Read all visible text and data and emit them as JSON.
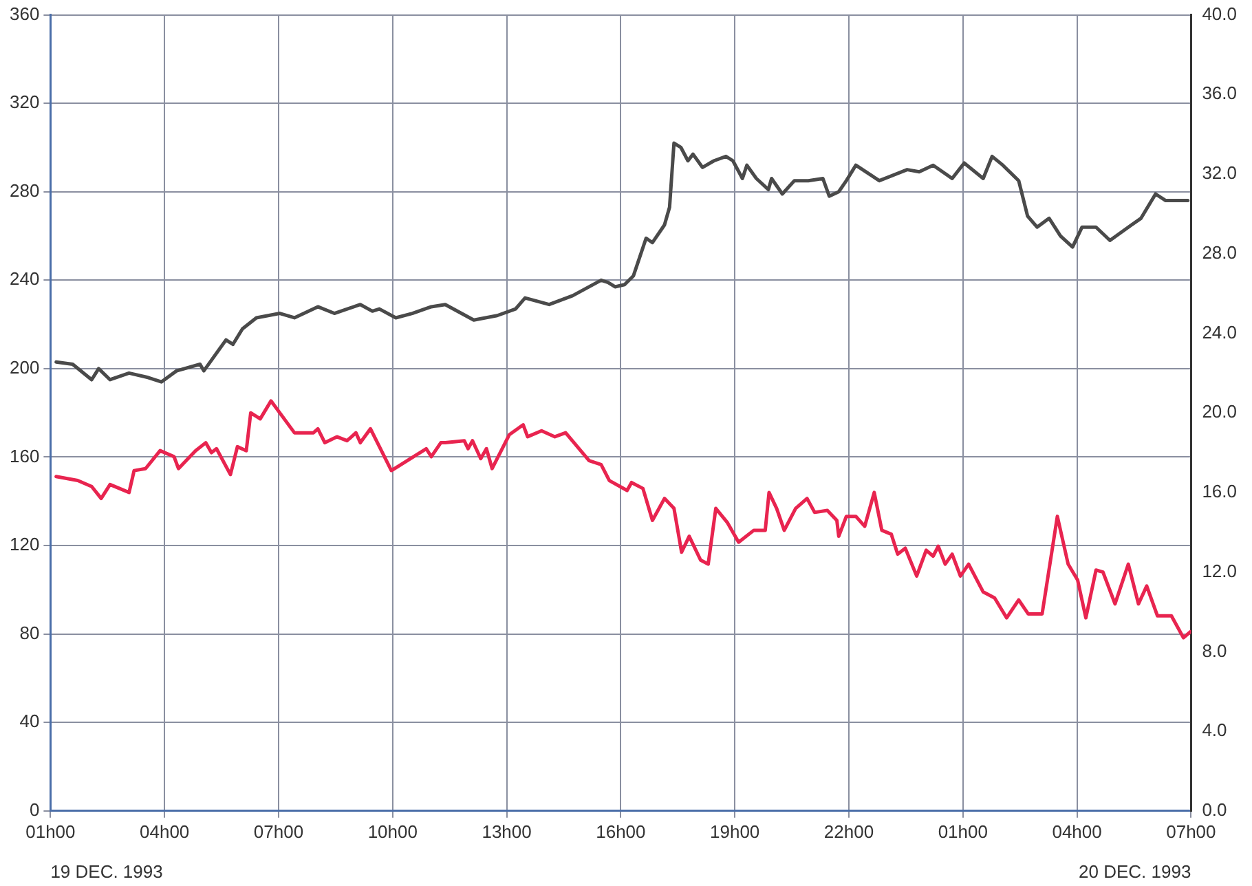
{
  "chart_data": {
    "type": "line",
    "x": [
      "1993-12-19T01:09",
      "1993-12-19T01:35",
      "1993-12-19T02:05",
      "1993-12-19T02:16",
      "1993-12-19T02:34",
      "1993-12-19T03:04",
      "1993-12-19T03:34",
      "1993-12-19T03:55",
      "1993-12-19T04:19",
      "1993-12-19T04:56",
      "1993-12-19T05:02",
      "1993-12-19T05:37",
      "1993-12-19T05:48",
      "1993-12-19T06:03",
      "1993-12-19T06:25",
      "1993-12-19T07:02",
      "1993-12-19T07:25",
      "1993-12-19T08:02",
      "1993-12-19T08:28",
      "1993-12-19T09:09",
      "1993-12-19T09:28",
      "1993-12-19T09:39",
      "1993-12-19T10:05",
      "1993-12-19T10:31",
      "1993-12-19T11:01",
      "1993-12-19T11:23",
      "1993-12-19T12:08",
      "1993-12-19T12:45",
      "1993-12-19T13:14",
      "1993-12-19T13:29",
      "1993-12-19T14:07",
      "1993-12-19T14:44",
      "1993-12-19T15:29",
      "1993-12-19T15:40",
      "1993-12-19T15:51",
      "1993-12-19T16:06",
      "1993-12-19T16:20",
      "1993-12-19T16:40",
      "1993-12-19T16:50",
      "1993-12-19T17:09",
      "1993-12-19T17:17",
      "1993-12-19T17:24",
      "1993-12-19T17:35",
      "1993-12-19T17:46",
      "1993-12-19T17:54",
      "1993-12-19T18:09",
      "1993-12-19T18:27",
      "1993-12-19T18:46",
      "1993-12-19T18:57",
      "1993-12-19T19:12",
      "1993-12-19T19:19",
      "1993-12-19T19:34",
      "1993-12-19T19:53",
      "1993-12-19T19:58",
      "1993-12-19T20:15",
      "1993-12-19T20:34",
      "1993-12-19T20:56",
      "1993-12-19T21:19",
      "1993-12-19T21:29",
      "1993-12-19T21:44",
      "1993-12-19T21:56",
      "1993-12-19T22:11",
      "1993-12-19T22:48",
      "1993-12-19T23:32",
      "1993-12-19T23:51",
      "1993-12-20T00:13",
      "1993-12-20T00:43",
      "1993-12-20T01:02",
      "1993-12-20T01:32",
      "1993-12-20T01:46",
      "1993-12-20T02:03",
      "1993-12-20T02:28",
      "1993-12-20T02:42",
      "1993-12-20T02:57",
      "1993-12-20T03:16",
      "1993-12-20T03:34",
      "1993-12-20T03:53",
      "1993-12-20T04:08",
      "1993-12-20T04:30",
      "1993-12-20T04:52",
      "1993-12-20T05:26",
      "1993-12-20T05:41",
      "1993-12-20T06:04",
      "1993-12-20T06:20",
      "1993-12-20T06:33",
      "1993-12-20T06:55"
    ],
    "series": [
      {
        "color": "#4a4a4a",
        "values": [
          203,
          202,
          195,
          200,
          195,
          198,
          196,
          194,
          199,
          202,
          199,
          213,
          211,
          218,
          223,
          225,
          223,
          228,
          225,
          229,
          226,
          227,
          223,
          225,
          228,
          229,
          222,
          224,
          227,
          232,
          229,
          233,
          240,
          239,
          237,
          238,
          242,
          259,
          257,
          265,
          273,
          302,
          300,
          294,
          297,
          291,
          294,
          296,
          294,
          286,
          292,
          286,
          281,
          286,
          279,
          285,
          285,
          286,
          278,
          280,
          285,
          292,
          285,
          290,
          289,
          292,
          286,
          293,
          286,
          296,
          292,
          285,
          269,
          264,
          268,
          260,
          255,
          264,
          264,
          258,
          265,
          268,
          279,
          276,
          276,
          276
        ]
      },
      {
        "color": "#e8244f",
        "axis": "y2",
        "x": [
          "1993-12-19T01:09",
          "1993-12-19T01:43",
          "1993-12-19T02:05",
          "1993-12-19T02:20",
          "1993-12-19T02:34",
          "1993-12-19T03:04",
          "1993-12-19T03:12",
          "1993-12-19T03:30",
          "1993-12-19T03:53",
          "1993-12-19T04:15",
          "1993-12-19T04:22",
          "1993-12-19T04:49",
          "1993-12-19T05:05",
          "1993-12-19T05:14",
          "1993-12-19T05:22",
          "1993-12-19T05:44",
          "1993-12-19T05:55",
          "1993-12-19T06:09",
          "1993-12-19T06:16",
          "1993-12-19T06:31",
          "1993-12-19T06:48",
          "1993-12-19T07:25",
          "1993-12-19T07:55",
          "1993-12-19T08:02",
          "1993-12-19T08:13",
          "1993-12-19T08:32",
          "1993-12-19T08:48",
          "1993-12-19T09:02",
          "1993-12-19T09:09",
          "1993-12-19T09:25",
          "1993-12-19T09:58",
          "1993-12-19T10:53",
          "1993-12-19T11:01",
          "1993-12-19T11:16",
          "1993-12-19T11:23",
          "1993-12-19T11:53",
          "1993-12-19T11:59",
          "1993-12-19T12:06",
          "1993-12-19T12:19",
          "1993-12-19T12:28",
          "1993-12-19T12:37",
          "1993-12-19T13:04",
          "1993-12-19T13:26",
          "1993-12-19T13:33",
          "1993-12-19T13:55",
          "1993-12-19T14:16",
          "1993-12-19T14:33",
          "1993-12-19T15:10",
          "1993-12-19T15:29",
          "1993-12-19T15:42",
          "1993-12-19T16:10",
          "1993-12-19T16:17",
          "1993-12-19T16:35",
          "1993-12-19T16:50",
          "1993-12-19T17:09",
          "1993-12-19T17:24",
          "1993-12-19T17:36",
          "1993-12-19T17:48",
          "1993-12-19T18:06",
          "1993-12-19T18:18",
          "1993-12-19T18:30",
          "1993-12-19T18:48",
          "1993-12-19T19:06",
          "1993-12-19T19:30",
          "1993-12-19T19:48",
          "1993-12-19T19:54",
          "1993-12-19T20:06",
          "1993-12-19T20:18",
          "1993-12-19T20:36",
          "1993-12-19T20:54",
          "1993-12-19T21:06",
          "1993-12-19T21:26",
          "1993-12-19T21:41",
          "1993-12-19T21:44",
          "1993-12-19T21:56",
          "1993-12-19T22:11",
          "1993-12-19T22:25",
          "1993-12-19T22:40",
          "1993-12-19T22:52",
          "1993-12-19T23:07",
          "1993-12-19T23:17",
          "1993-12-19T23:29",
          "1993-12-19T23:47",
          "1993-12-20T00:02",
          "1993-12-20T00:13",
          "1993-12-20T00:21",
          "1993-12-20T00:32",
          "1993-12-20T00:43",
          "1993-12-20T00:56",
          "1993-12-20T01:09",
          "1993-12-20T01:32",
          "1993-12-20T01:50",
          "1993-12-20T02:09",
          "1993-12-20T02:28",
          "1993-12-20T02:43",
          "1993-12-20T03:05",
          "1993-12-20T03:29",
          "1993-12-20T03:46",
          "1993-12-20T04:01",
          "1993-12-20T04:14",
          "1993-12-20T04:30",
          "1993-12-20T04:41",
          "1993-12-20T05:00",
          "1993-12-20T05:21",
          "1993-12-20T05:37",
          "1993-12-20T05:50",
          "1993-12-20T06:07",
          "1993-12-20T06:29",
          "1993-12-20T06:48",
          "1993-12-20T06:59"
        ],
        "values": [
          16.8,
          16.6,
          16.3,
          15.7,
          16.4,
          16.0,
          17.1,
          17.2,
          18.1,
          17.8,
          17.2,
          18.1,
          18.5,
          18.0,
          18.2,
          16.9,
          18.3,
          18.1,
          20.0,
          19.7,
          20.6,
          19.0,
          19.0,
          19.2,
          18.5,
          18.8,
          18.6,
          19.0,
          18.5,
          19.2,
          17.1,
          18.2,
          17.8,
          18.5,
          18.5,
          18.6,
          18.2,
          18.6,
          17.7,
          18.2,
          17.2,
          18.9,
          19.4,
          18.8,
          19.1,
          18.8,
          19.0,
          17.6,
          17.4,
          16.6,
          16.1,
          16.5,
          16.2,
          14.6,
          15.7,
          15.2,
          13.0,
          13.8,
          12.6,
          12.4,
          15.2,
          14.5,
          13.5,
          14.1,
          14.1,
          16.0,
          15.2,
          14.1,
          15.2,
          15.7,
          15.0,
          15.1,
          14.6,
          13.8,
          14.8,
          14.8,
          14.3,
          16.0,
          14.1,
          13.9,
          12.9,
          13.2,
          11.8,
          13.1,
          12.8,
          13.3,
          12.4,
          12.9,
          11.8,
          12.4,
          11.0,
          10.7,
          9.7,
          10.6,
          9.9,
          9.9,
          14.8,
          12.4,
          11.6,
          9.7,
          12.1,
          12.0,
          10.4,
          12.4,
          10.4,
          11.3,
          9.8,
          9.8,
          8.7,
          9.0
        ]
      }
    ],
    "xlim": [
      "1993-12-19T01:00",
      "1993-12-20T07:00"
    ],
    "xticks": [
      {
        "value": "1993-12-19T01:00",
        "label": "01h00"
      },
      {
        "value": "1993-12-19T04:00",
        "label": "04h00"
      },
      {
        "value": "1993-12-19T07:00",
        "label": "07h00"
      },
      {
        "value": "1993-12-19T10:00",
        "label": "10h00"
      },
      {
        "value": "1993-12-19T13:00",
        "label": "13h00"
      },
      {
        "value": "1993-12-19T16:00",
        "label": "16h00"
      },
      {
        "value": "1993-12-19T19:00",
        "label": "19h00"
      },
      {
        "value": "1993-12-19T22:00",
        "label": "22h00"
      },
      {
        "value": "1993-12-20T01:00",
        "label": "01h00"
      },
      {
        "value": "1993-12-20T04:00",
        "label": "04h00"
      },
      {
        "value": "1993-12-20T07:00",
        "label": "07h00"
      }
    ],
    "ylim": [
      0,
      360
    ],
    "yticks": [
      0,
      40,
      80,
      120,
      160,
      200,
      240,
      280,
      320,
      360
    ],
    "y2lim": [
      0,
      40
    ],
    "y2ticks": [
      {
        "value": 0,
        "label": "0.0"
      },
      {
        "value": 4,
        "label": "4.0"
      },
      {
        "value": 8,
        "label": "8.0"
      },
      {
        "value": 12,
        "label": "12.0"
      },
      {
        "value": 16,
        "label": "16.0"
      },
      {
        "value": 20,
        "label": "20.0"
      },
      {
        "value": 24,
        "label": "24.0"
      },
      {
        "value": 28,
        "label": "28.0"
      },
      {
        "value": 32,
        "label": "32.0"
      },
      {
        "value": 36,
        "label": "36.0"
      },
      {
        "value": 40,
        "label": "40.0"
      }
    ],
    "grid": true,
    "legend": false,
    "marker": "none",
    "line_style": "solid",
    "annotations": [
      "19 DEC. 1993",
      "20 DEC. 1993"
    ]
  }
}
